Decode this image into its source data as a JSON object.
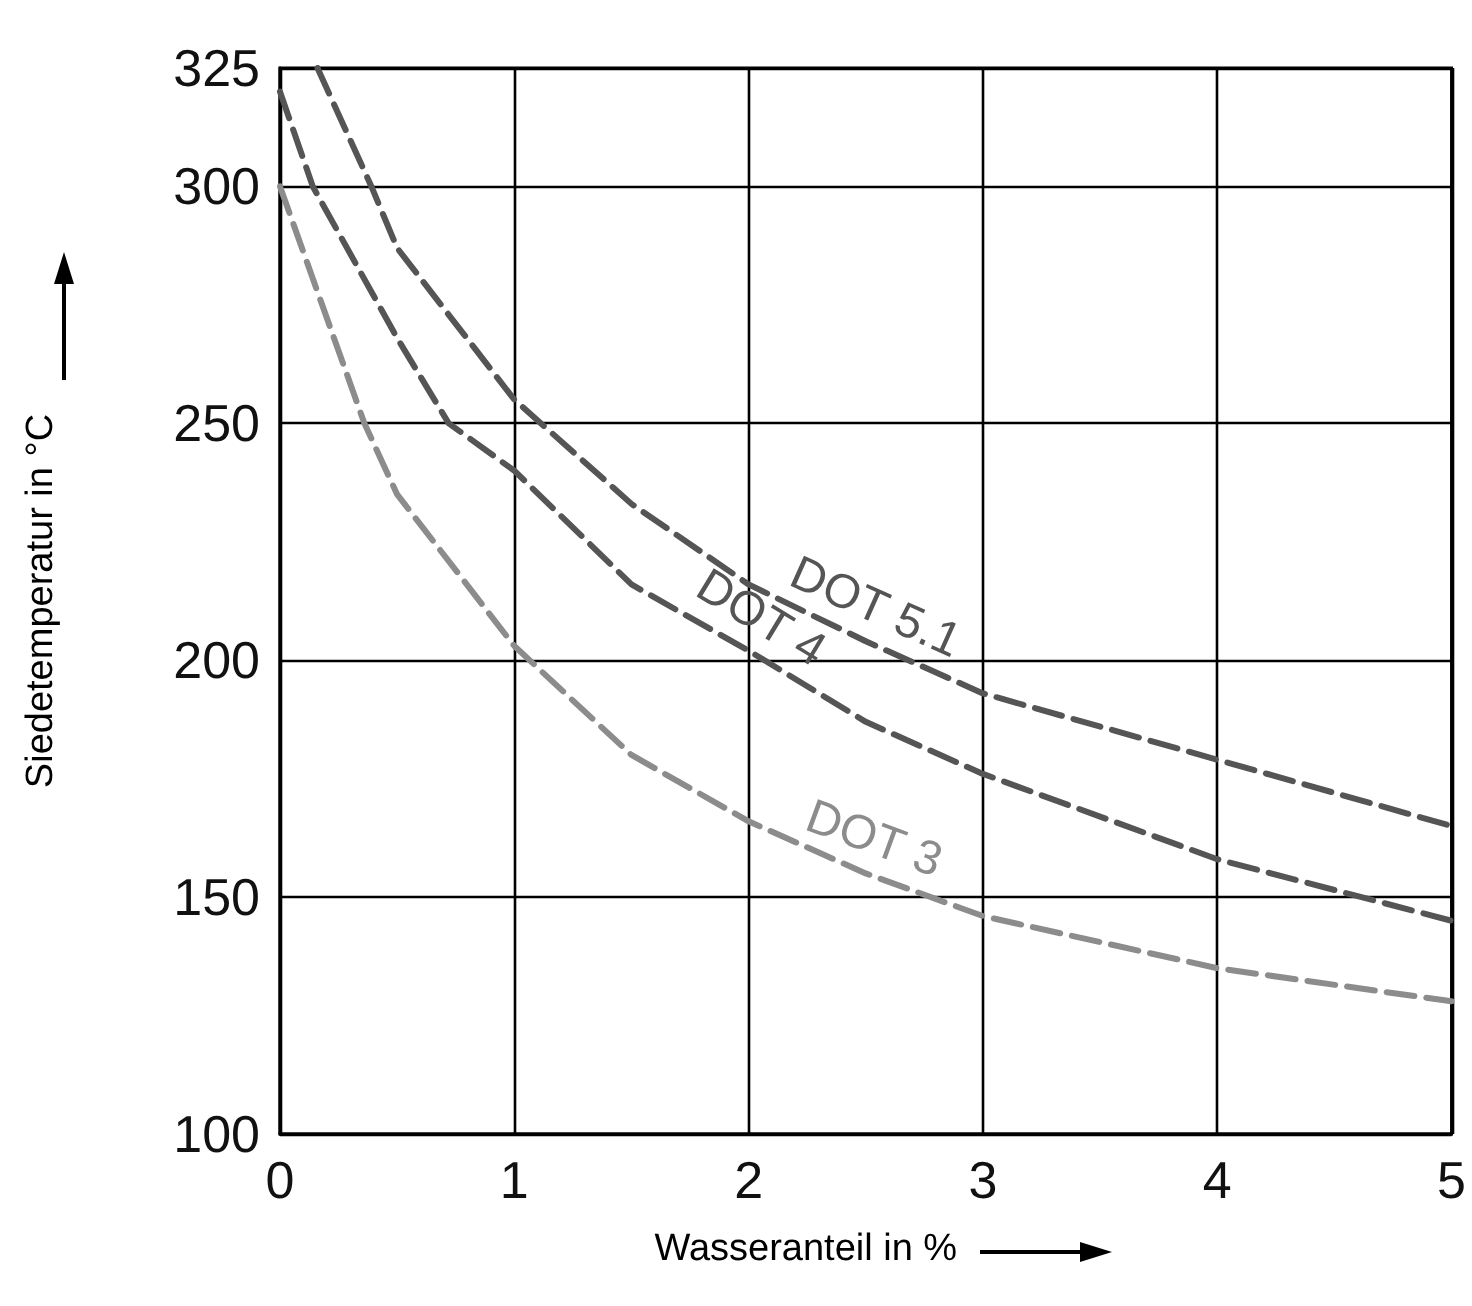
{
  "chart_data": {
    "type": "line",
    "xlabel": "Wasseranteil in %",
    "ylabel": "Siedetemperatur in °C",
    "xlim": [
      0,
      5
    ],
    "xticks": [
      0,
      1,
      2,
      3,
      4,
      5
    ],
    "ylim": [
      100,
      325
    ],
    "yticks": [
      100,
      150,
      200,
      250,
      300,
      325
    ],
    "grid": true,
    "legend": false,
    "marker": "none",
    "series": [
      {
        "name": "DOT 5.1",
        "color": "#555555",
        "line_style": "dashed",
        "x": [
          0.16,
          0.39,
          0.5,
          1,
          1.5,
          2,
          2.5,
          3,
          4,
          5
        ],
        "values": [
          325,
          300,
          287,
          255,
          233,
          216,
          204,
          193,
          179,
          165
        ]
      },
      {
        "name": "DOT 4",
        "color": "#555555",
        "line_style": "dashed",
        "x": [
          0,
          0.14,
          0.5,
          0.72,
          1,
          1.5,
          2,
          2.5,
          3,
          4,
          5
        ],
        "values": [
          320,
          300,
          268,
          250,
          240,
          216,
          202,
          187,
          176,
          158,
          145
        ]
      },
      {
        "name": "DOT 3",
        "color": "#8c8c8c",
        "line_style": "dashed",
        "x": [
          0,
          0.36,
          0.5,
          1,
          1.5,
          2,
          2.5,
          3,
          4,
          5
        ],
        "values": [
          300,
          250,
          235,
          203,
          180,
          166,
          155,
          146,
          135,
          128
        ]
      }
    ]
  }
}
